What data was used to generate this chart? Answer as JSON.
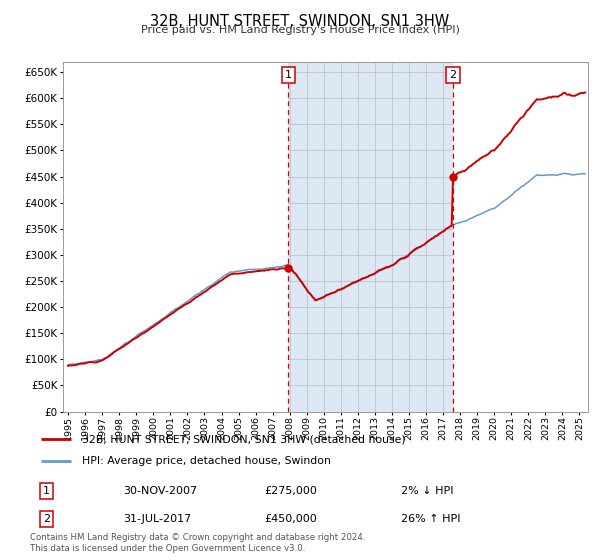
{
  "title": "32B, HUNT STREET, SWINDON, SN1 3HW",
  "subtitle": "Price paid vs. HM Land Registry's House Price Index (HPI)",
  "ylim": [
    0,
    670000
  ],
  "yticks": [
    0,
    50000,
    100000,
    150000,
    200000,
    250000,
    300000,
    350000,
    400000,
    450000,
    500000,
    550000,
    600000,
    650000
  ],
  "xlim_start": 1994.7,
  "xlim_end": 2025.5,
  "sale1_year": 2007.917,
  "sale1_price": 275000,
  "sale2_year": 2017.583,
  "sale2_price": 450000,
  "hpi_color": "#6699cc",
  "property_color": "#cc0000",
  "chart_bg": "#dce9f5",
  "plot_bg": "#ffffff",
  "grid_color": "#bbbbbb",
  "legend_line1": "32B, HUNT STREET, SWINDON, SN1 3HW (detached house)",
  "legend_line2": "HPI: Average price, detached house, Swindon",
  "footer": "Contains HM Land Registry data © Crown copyright and database right 2024.\nThis data is licensed under the Open Government Licence v3.0.",
  "table_row1": [
    "1",
    "30-NOV-2007",
    "£275,000",
    "2% ↓ HPI"
  ],
  "table_row2": [
    "2",
    "31-JUL-2017",
    "£450,000",
    "26% ↑ HPI"
  ]
}
